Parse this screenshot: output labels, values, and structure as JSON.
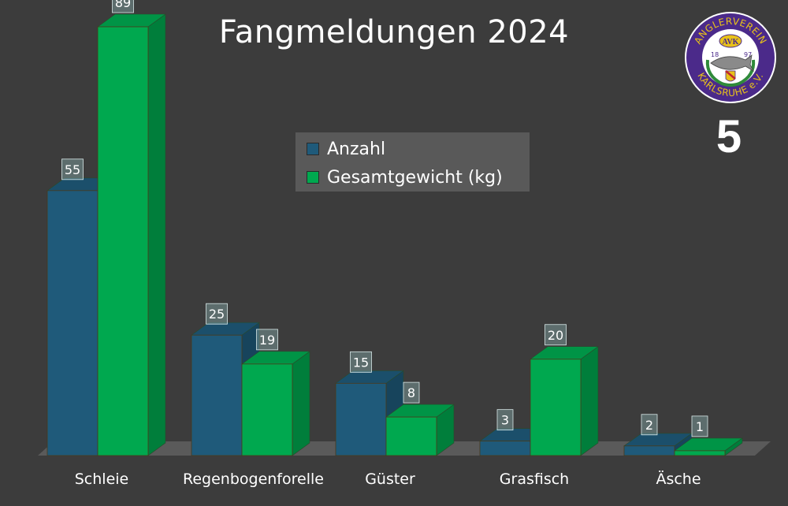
{
  "chart_data": {
    "type": "bar",
    "title": "Fangmeldungen 2024",
    "categories": [
      "Schleie",
      "Regenbogenforelle",
      "Güster",
      "Grasfisch",
      "Äsche"
    ],
    "series": [
      {
        "name": "Anzahl",
        "values": [
          55,
          25,
          15,
          3,
          2
        ],
        "color": "#1f5a7a"
      },
      {
        "name": "Gesamtgewicht (kg)",
        "values": [
          89,
          19,
          8,
          20,
          1
        ],
        "color": "#00a84f"
      }
    ],
    "ylim": [
      0,
      89
    ],
    "grid": false,
    "legend_position": "top-center",
    "data_labels": true,
    "style": "3d-columns"
  },
  "badge": {
    "number": "5"
  },
  "logo": {
    "text_top": "ANGLERVEREIN",
    "monogram": "AVK",
    "year_left": "18",
    "year_right": "97",
    "text_bottom": "KARLSRUHE e.V.",
    "ring_color": "#4b2a8a",
    "inner_color": "#ffffff",
    "gold_color": "#e8c21a"
  }
}
